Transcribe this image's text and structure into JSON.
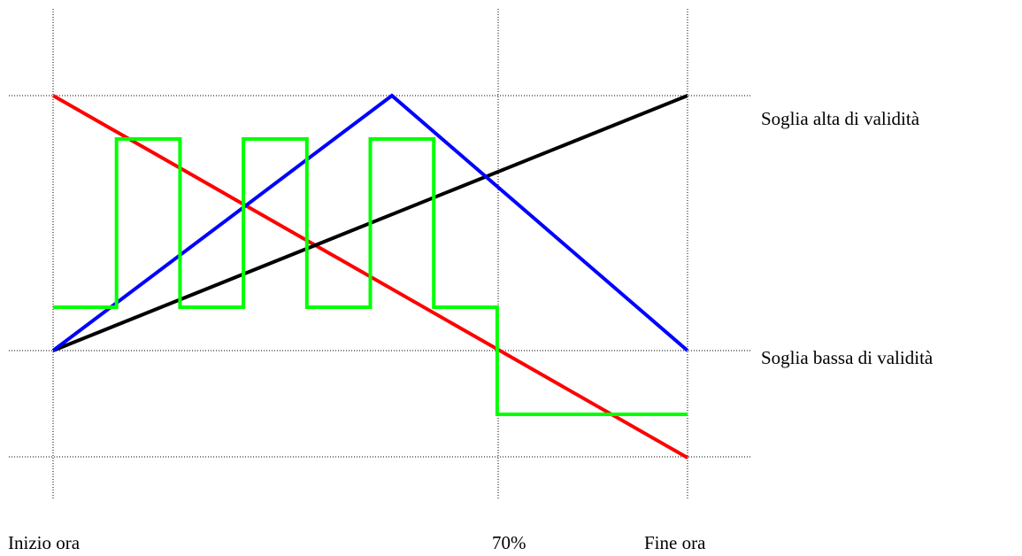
{
  "labels": {
    "high_threshold": "Soglia alta di validità",
    "low_threshold": "Soglia bassa  di validità",
    "start": "Inizio ora",
    "seventy": "70%",
    "end": "Fine ora"
  },
  "colors": {
    "red": "#ff0000",
    "blue": "#0000ff",
    "black": "#000000",
    "green": "#00ff00",
    "grid": "#000000"
  },
  "guides": {
    "style": "dotted",
    "vertical": [
      "Inizio ora",
      "70%",
      "Fine ora"
    ],
    "horizontal": [
      "top",
      "Soglia alta di validità",
      "Soglia bassa  di validità",
      "bottom"
    ]
  },
  "chart_data": {
    "type": "line",
    "x_domain": [
      0,
      100
    ],
    "y_note": "0 = Soglia bassa di validità, 100 = Soglia alta di validità",
    "series": [
      {
        "key": "red",
        "points": [
          [
            0,
            100
          ],
          [
            100,
            -42
          ]
        ]
      },
      {
        "key": "blue",
        "points": [
          [
            0,
            0
          ],
          [
            53.4,
            100
          ],
          [
            100,
            0
          ]
        ]
      },
      {
        "key": "black",
        "points": [
          [
            0,
            0
          ],
          [
            100,
            100
          ]
        ]
      },
      {
        "key": "green",
        "step": true,
        "points": [
          [
            0,
            17
          ],
          [
            10,
            17
          ],
          [
            10,
            83
          ],
          [
            20,
            83
          ],
          [
            20,
            17
          ],
          [
            30,
            17
          ],
          [
            30,
            83
          ],
          [
            40,
            83
          ],
          [
            40,
            17
          ],
          [
            50,
            17
          ],
          [
            50,
            83
          ],
          [
            60,
            83
          ],
          [
            60,
            17
          ],
          [
            70,
            17
          ],
          [
            70,
            -25
          ],
          [
            100,
            -25
          ]
        ]
      }
    ]
  }
}
